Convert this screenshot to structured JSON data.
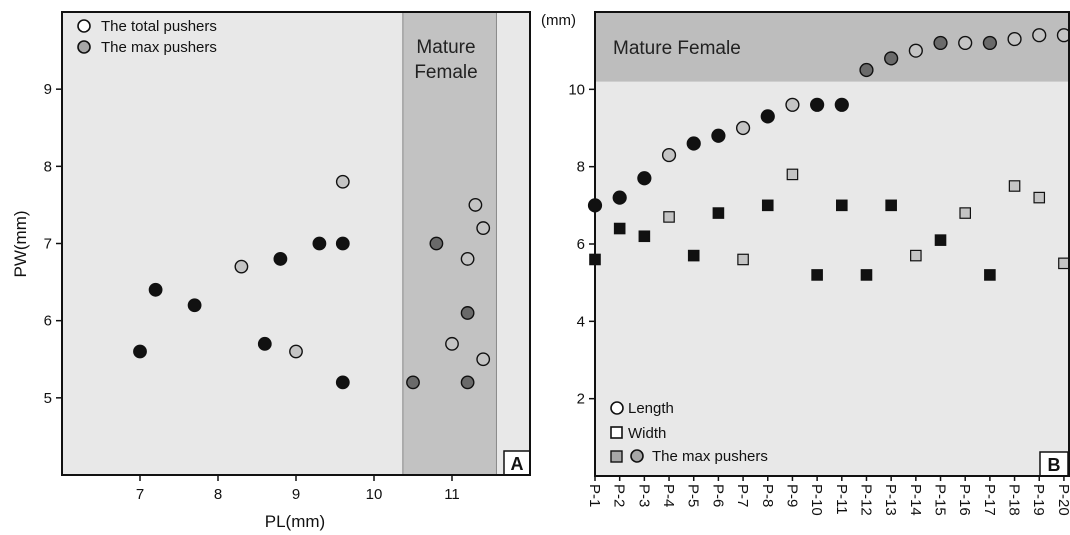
{
  "chart_data": [
    {
      "type": "scatter",
      "panel_label": "A",
      "xlabel": "PL(mm)",
      "ylabel": "PW(mm)",
      "xlim": [
        6.0,
        12.0
      ],
      "ylim": [
        4.0,
        10.0
      ],
      "xticks": [
        "7",
        "8",
        "9",
        "10",
        "11"
      ],
      "yticks": [
        "5",
        "6",
        "7",
        "8",
        "9"
      ],
      "grid": false,
      "legend_position": "top-left",
      "region": {
        "label_line1": "Mature",
        "label_line2": "Female",
        "x_range": [
          10.37,
          11.57
        ],
        "color": "#c2c2c2"
      },
      "legend": [
        {
          "label": "The total pushers",
          "fill": "#ffffff"
        },
        {
          "label": "The max pushers",
          "fill": "#a7a7a7"
        }
      ],
      "colors": {
        "black": "#111111",
        "light": "#c4c4c4",
        "dark": "#6a6a6a",
        "background": "#e8e8e8"
      },
      "points": [
        {
          "x": 7.0,
          "y": 5.6,
          "c": "black"
        },
        {
          "x": 7.2,
          "y": 6.4,
          "c": "black"
        },
        {
          "x": 7.7,
          "y": 6.2,
          "c": "black"
        },
        {
          "x": 8.3,
          "y": 6.7,
          "c": "light"
        },
        {
          "x": 8.6,
          "y": 5.7,
          "c": "black"
        },
        {
          "x": 8.8,
          "y": 6.8,
          "c": "black"
        },
        {
          "x": 9.0,
          "y": 5.6,
          "c": "light"
        },
        {
          "x": 9.3,
          "y": 7.0,
          "c": "black"
        },
        {
          "x": 9.6,
          "y": 7.0,
          "c": "black"
        },
        {
          "x": 9.6,
          "y": 7.8,
          "c": "light"
        },
        {
          "x": 9.6,
          "y": 5.2,
          "c": "black"
        },
        {
          "x": 10.5,
          "y": 5.2,
          "c": "dark"
        },
        {
          "x": 10.8,
          "y": 7.0,
          "c": "dark"
        },
        {
          "x": 11.0,
          "y": 5.7,
          "c": "light"
        },
        {
          "x": 11.2,
          "y": 6.8,
          "c": "light"
        },
        {
          "x": 11.2,
          "y": 6.1,
          "c": "dark"
        },
        {
          "x": 11.2,
          "y": 5.2,
          "c": "dark"
        },
        {
          "x": 11.3,
          "y": 7.5,
          "c": "light"
        },
        {
          "x": 11.4,
          "y": 7.2,
          "c": "light"
        },
        {
          "x": 11.4,
          "y": 5.5,
          "c": "light"
        }
      ]
    },
    {
      "type": "scatter",
      "panel_label": "B",
      "unit_label": "(mm)",
      "ylim": [
        0.0,
        12.0
      ],
      "yticks": [
        "2",
        "4",
        "6",
        "8",
        "10"
      ],
      "categories": [
        "P-1",
        "P-2",
        "P-3",
        "P-4",
        "P-5",
        "P-6",
        "P-7",
        "P-8",
        "P-9",
        "P-10",
        "P-11",
        "P-12",
        "P-13",
        "P-14",
        "P-15",
        "P-16",
        "P-17",
        "P-18",
        "P-19",
        "P-20"
      ],
      "grid": false,
      "legend_position": "bottom-left",
      "region": {
        "label": "Mature Female",
        "y_range": [
          10.2,
          12.0
        ],
        "color": "#bdbdbd"
      },
      "legend": [
        {
          "label": "Length",
          "shape": "circle",
          "fill": "#ffffff"
        },
        {
          "label": "Width",
          "shape": "square",
          "fill": "#ffffff"
        },
        {
          "label": "The max pushers",
          "shape": "square+circle",
          "fill": "#a7a7a7"
        }
      ],
      "colors": {
        "black": "#111111",
        "light": "#c4c4c4",
        "dark": "#6a6a6a",
        "background": "#e8e8e8"
      },
      "series": [
        {
          "name": "Length",
          "shape": "circle",
          "values": [
            7.0,
            7.2,
            7.7,
            8.3,
            8.6,
            8.8,
            9.0,
            9.3,
            9.6,
            9.6,
            9.6,
            10.5,
            10.8,
            11.0,
            11.2,
            11.2,
            11.2,
            11.3,
            11.4,
            11.4
          ],
          "colors": [
            "black",
            "black",
            "black",
            "light",
            "black",
            "black",
            "light",
            "black",
            "light",
            "black",
            "black",
            "dark",
            "dark",
            "light",
            "dark",
            "light",
            "dark",
            "light",
            "light",
            "light"
          ]
        },
        {
          "name": "Width",
          "shape": "square",
          "values": [
            5.6,
            6.4,
            6.2,
            6.7,
            5.7,
            6.8,
            5.6,
            7.0,
            7.8,
            5.2,
            7.0,
            5.2,
            7.0,
            5.7,
            6.1,
            6.8,
            5.2,
            7.5,
            7.2,
            5.5
          ],
          "colors": [
            "black",
            "black",
            "black",
            "light",
            "black",
            "black",
            "light",
            "black",
            "light",
            "black",
            "black",
            "black",
            "black",
            "light",
            "black",
            "light",
            "black",
            "light",
            "light",
            "light"
          ]
        }
      ]
    }
  ]
}
